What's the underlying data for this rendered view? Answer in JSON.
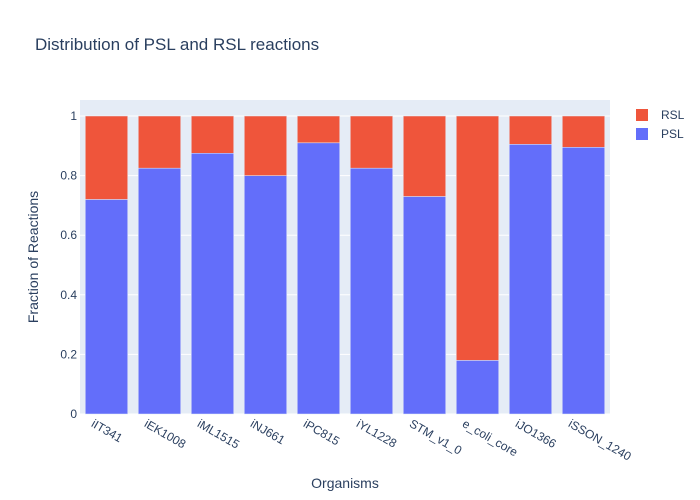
{
  "chart_data": {
    "type": "bar",
    "stacked": true,
    "title": "Distribution of PSL and RSL reactions",
    "xlabel": "Organisms",
    "ylabel": "Fraction of Reactions",
    "ylim": [
      0,
      1
    ],
    "yticks": [
      0,
      0.2,
      0.4,
      0.6,
      0.8,
      1
    ],
    "ytick_labels": [
      "0",
      "0.2",
      "0.4",
      "0.6",
      "0.8",
      "1"
    ],
    "grid": true,
    "legend_position": "top-right",
    "categories": [
      "iIT341",
      "iEK1008",
      "iML1515",
      "iNJ661",
      "iPC815",
      "iYL1228",
      "STM_v1_0",
      "e_coli_core",
      "iJO1366",
      "iSSON_1240"
    ],
    "series": [
      {
        "name": "PSL",
        "color": "#636efa",
        "values": [
          0.72,
          0.825,
          0.875,
          0.8,
          0.91,
          0.825,
          0.73,
          0.18,
          0.905,
          0.895
        ]
      },
      {
        "name": "RSL",
        "color": "#ef553b",
        "values": [
          0.28,
          0.175,
          0.125,
          0.2,
          0.09,
          0.175,
          0.27,
          0.82,
          0.095,
          0.105
        ]
      }
    ],
    "legend_order": [
      "RSL",
      "PSL"
    ]
  }
}
